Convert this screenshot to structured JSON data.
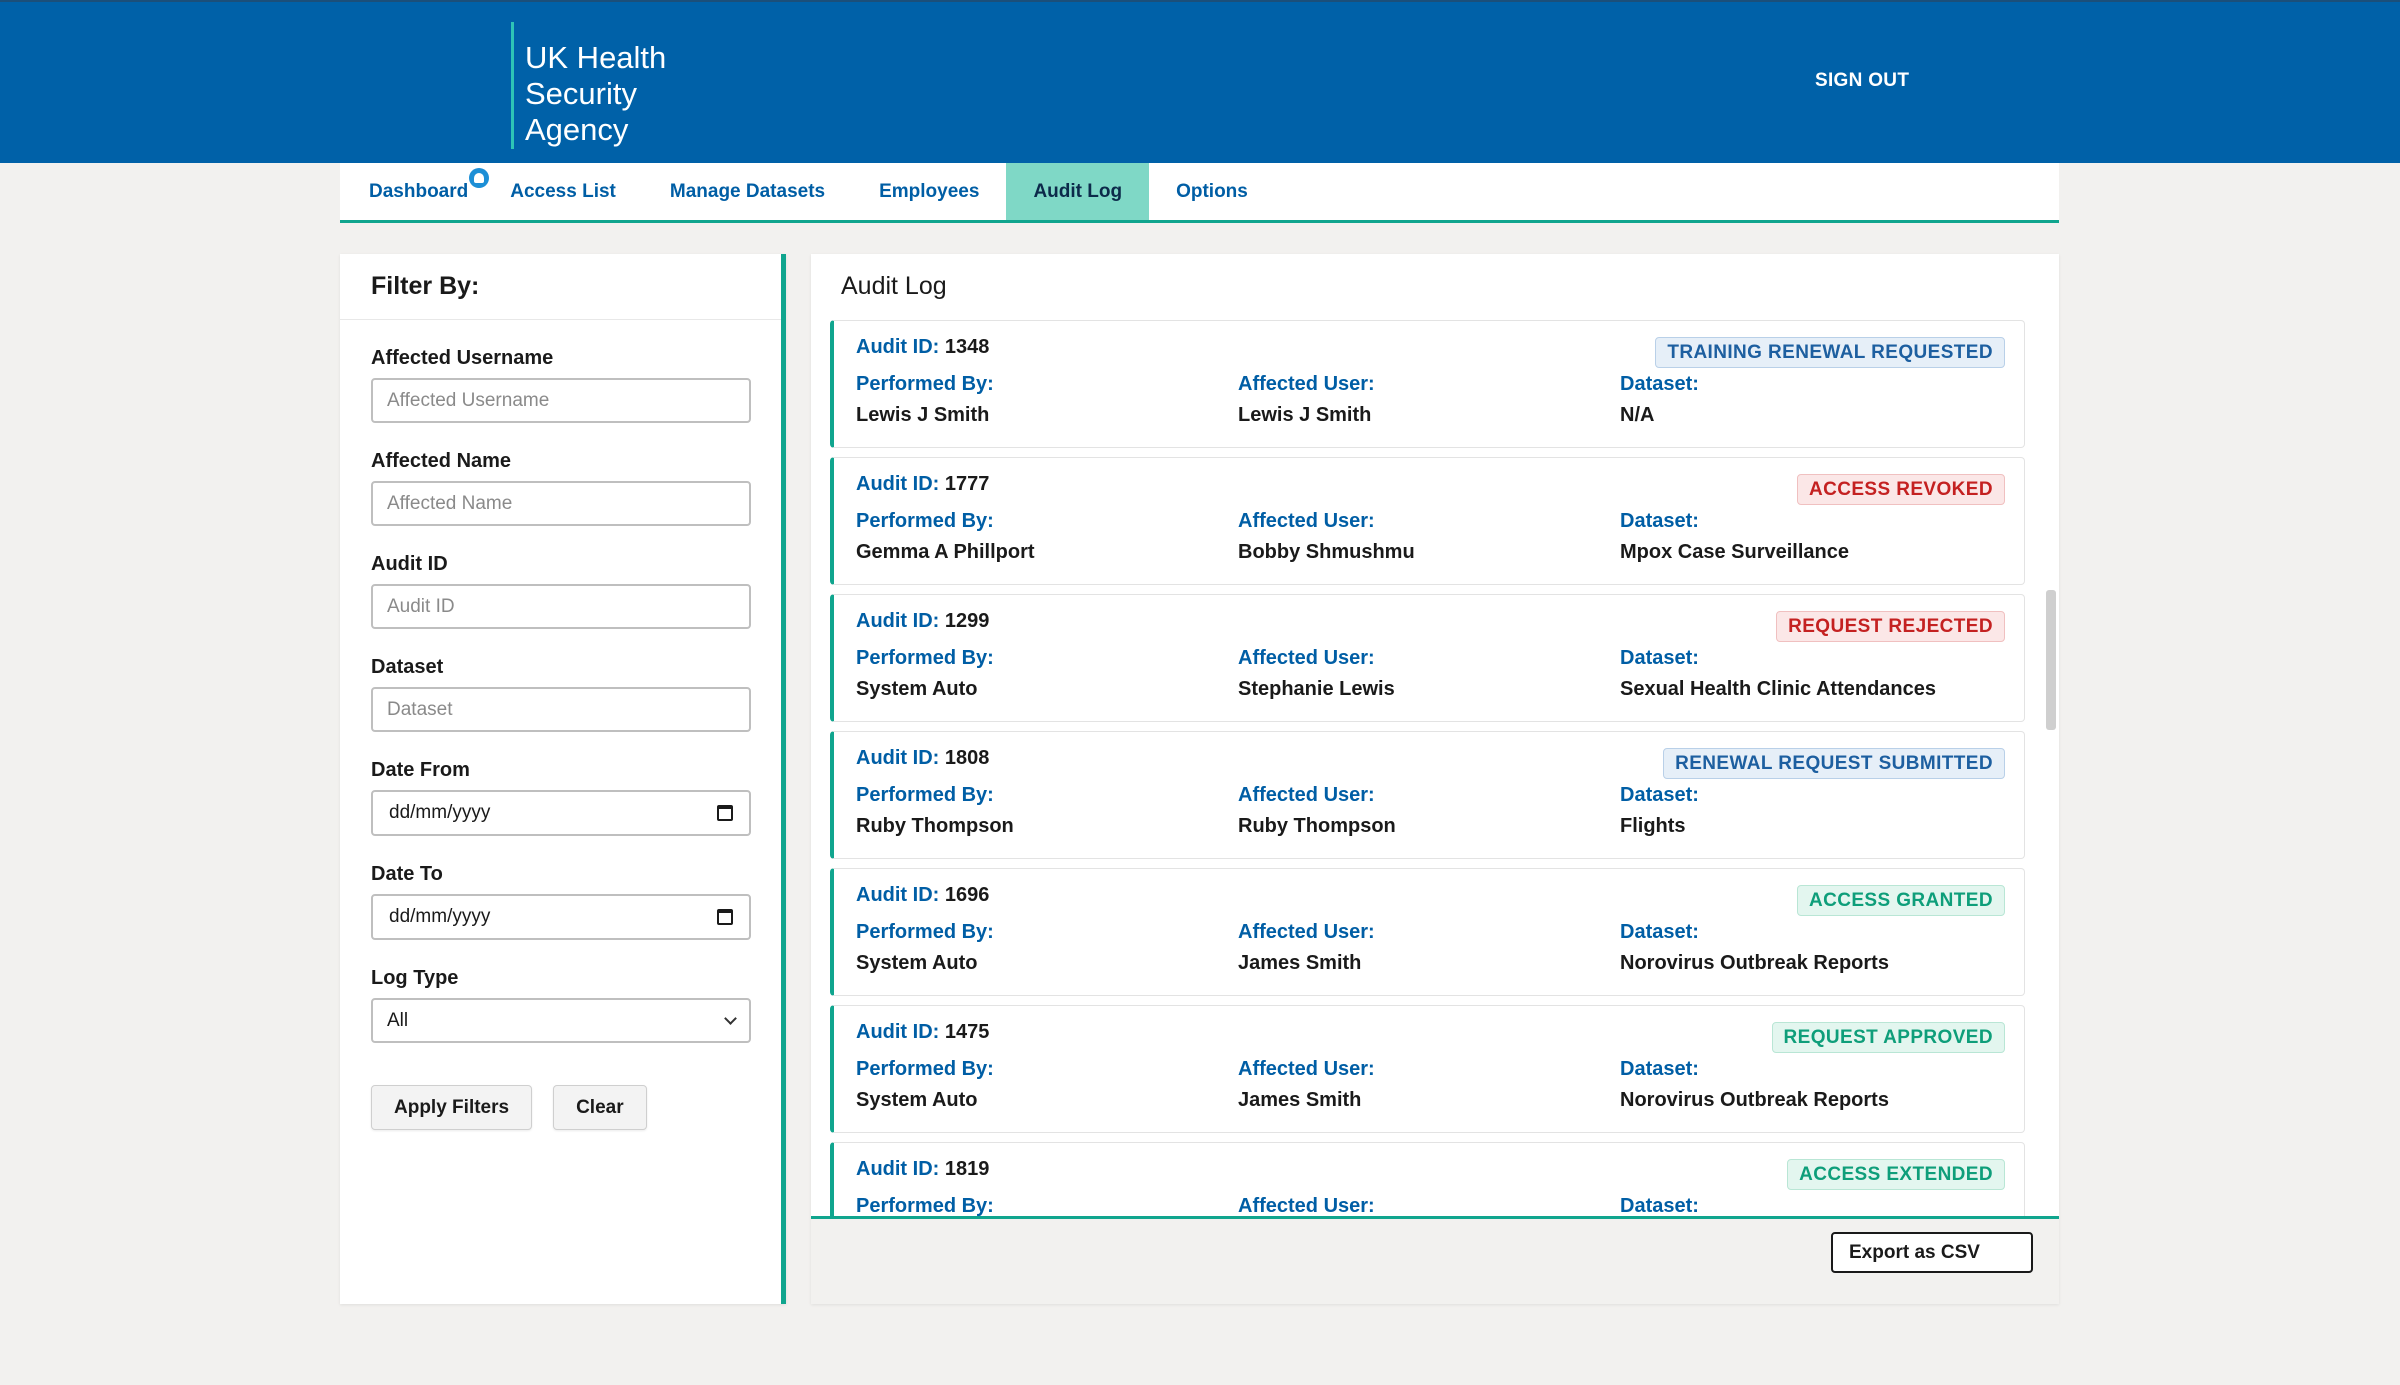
{
  "header": {
    "logo_lines": [
      "UK Health",
      "Security",
      "Agency"
    ],
    "sign_out": "SIGN OUT"
  },
  "nav": {
    "tabs": [
      {
        "label": "Dashboard",
        "has_badge": true
      },
      {
        "label": "Access List"
      },
      {
        "label": "Manage Datasets"
      },
      {
        "label": "Employees"
      },
      {
        "label": "Audit Log",
        "active": true
      },
      {
        "label": "Options"
      }
    ]
  },
  "filter": {
    "title": "Filter By:",
    "affected_username": {
      "label": "Affected Username",
      "placeholder": "Affected Username"
    },
    "affected_name": {
      "label": "Affected Name",
      "placeholder": "Affected Name"
    },
    "audit_id": {
      "label": "Audit ID",
      "placeholder": "Audit ID"
    },
    "dataset": {
      "label": "Dataset",
      "placeholder": "Dataset"
    },
    "date_from": {
      "label": "Date From",
      "value": "dd/mm/yyyy"
    },
    "date_to": {
      "label": "Date To",
      "value": "dd/mm/yyyy"
    },
    "log_type": {
      "label": "Log Type",
      "value": "All"
    },
    "apply_label": "Apply Filters",
    "clear_label": "Clear"
  },
  "audit": {
    "title": "Audit Log",
    "labels": {
      "audit_id": "Audit ID:",
      "performed_by": "Performed By:",
      "affected_user": "Affected User:",
      "dataset": "Dataset:"
    },
    "entries": [
      {
        "id": "1348",
        "status": "TRAINING RENEWAL REQUESTED",
        "status_color": "blue",
        "performed_by": "Lewis J Smith",
        "affected_user": "Lewis J Smith",
        "dataset": "N/A"
      },
      {
        "id": "1777",
        "status": "ACCESS REVOKED",
        "status_color": "red",
        "performed_by": "Gemma A Phillport",
        "affected_user": "Bobby Shmushmu",
        "dataset": "Mpox Case Surveillance"
      },
      {
        "id": "1299",
        "status": "REQUEST REJECTED",
        "status_color": "red",
        "performed_by": "System Auto",
        "affected_user": "Stephanie Lewis",
        "dataset": "Sexual Health Clinic Attendances"
      },
      {
        "id": "1808",
        "status": "RENEWAL REQUEST SUBMITTED",
        "status_color": "blue",
        "performed_by": "Ruby Thompson",
        "affected_user": "Ruby Thompson",
        "dataset": "Flights"
      },
      {
        "id": "1696",
        "status": "ACCESS GRANTED",
        "status_color": "green",
        "performed_by": "System Auto",
        "affected_user": "James Smith",
        "dataset": "Norovirus Outbreak Reports"
      },
      {
        "id": "1475",
        "status": "REQUEST APPROVED",
        "status_color": "green",
        "performed_by": "System Auto",
        "affected_user": "James Smith",
        "dataset": "Norovirus Outbreak Reports"
      },
      {
        "id": "1819",
        "status": "ACCESS EXTENDED",
        "status_color": "green",
        "performed_by": "",
        "affected_user": "",
        "dataset": ""
      }
    ],
    "export_label": "Export as CSV"
  },
  "colors": {
    "header_bg": "#0061a8",
    "accent_teal": "#10a58e",
    "active_tab": "#7fd8c6",
    "link_blue": "#005ea5"
  }
}
